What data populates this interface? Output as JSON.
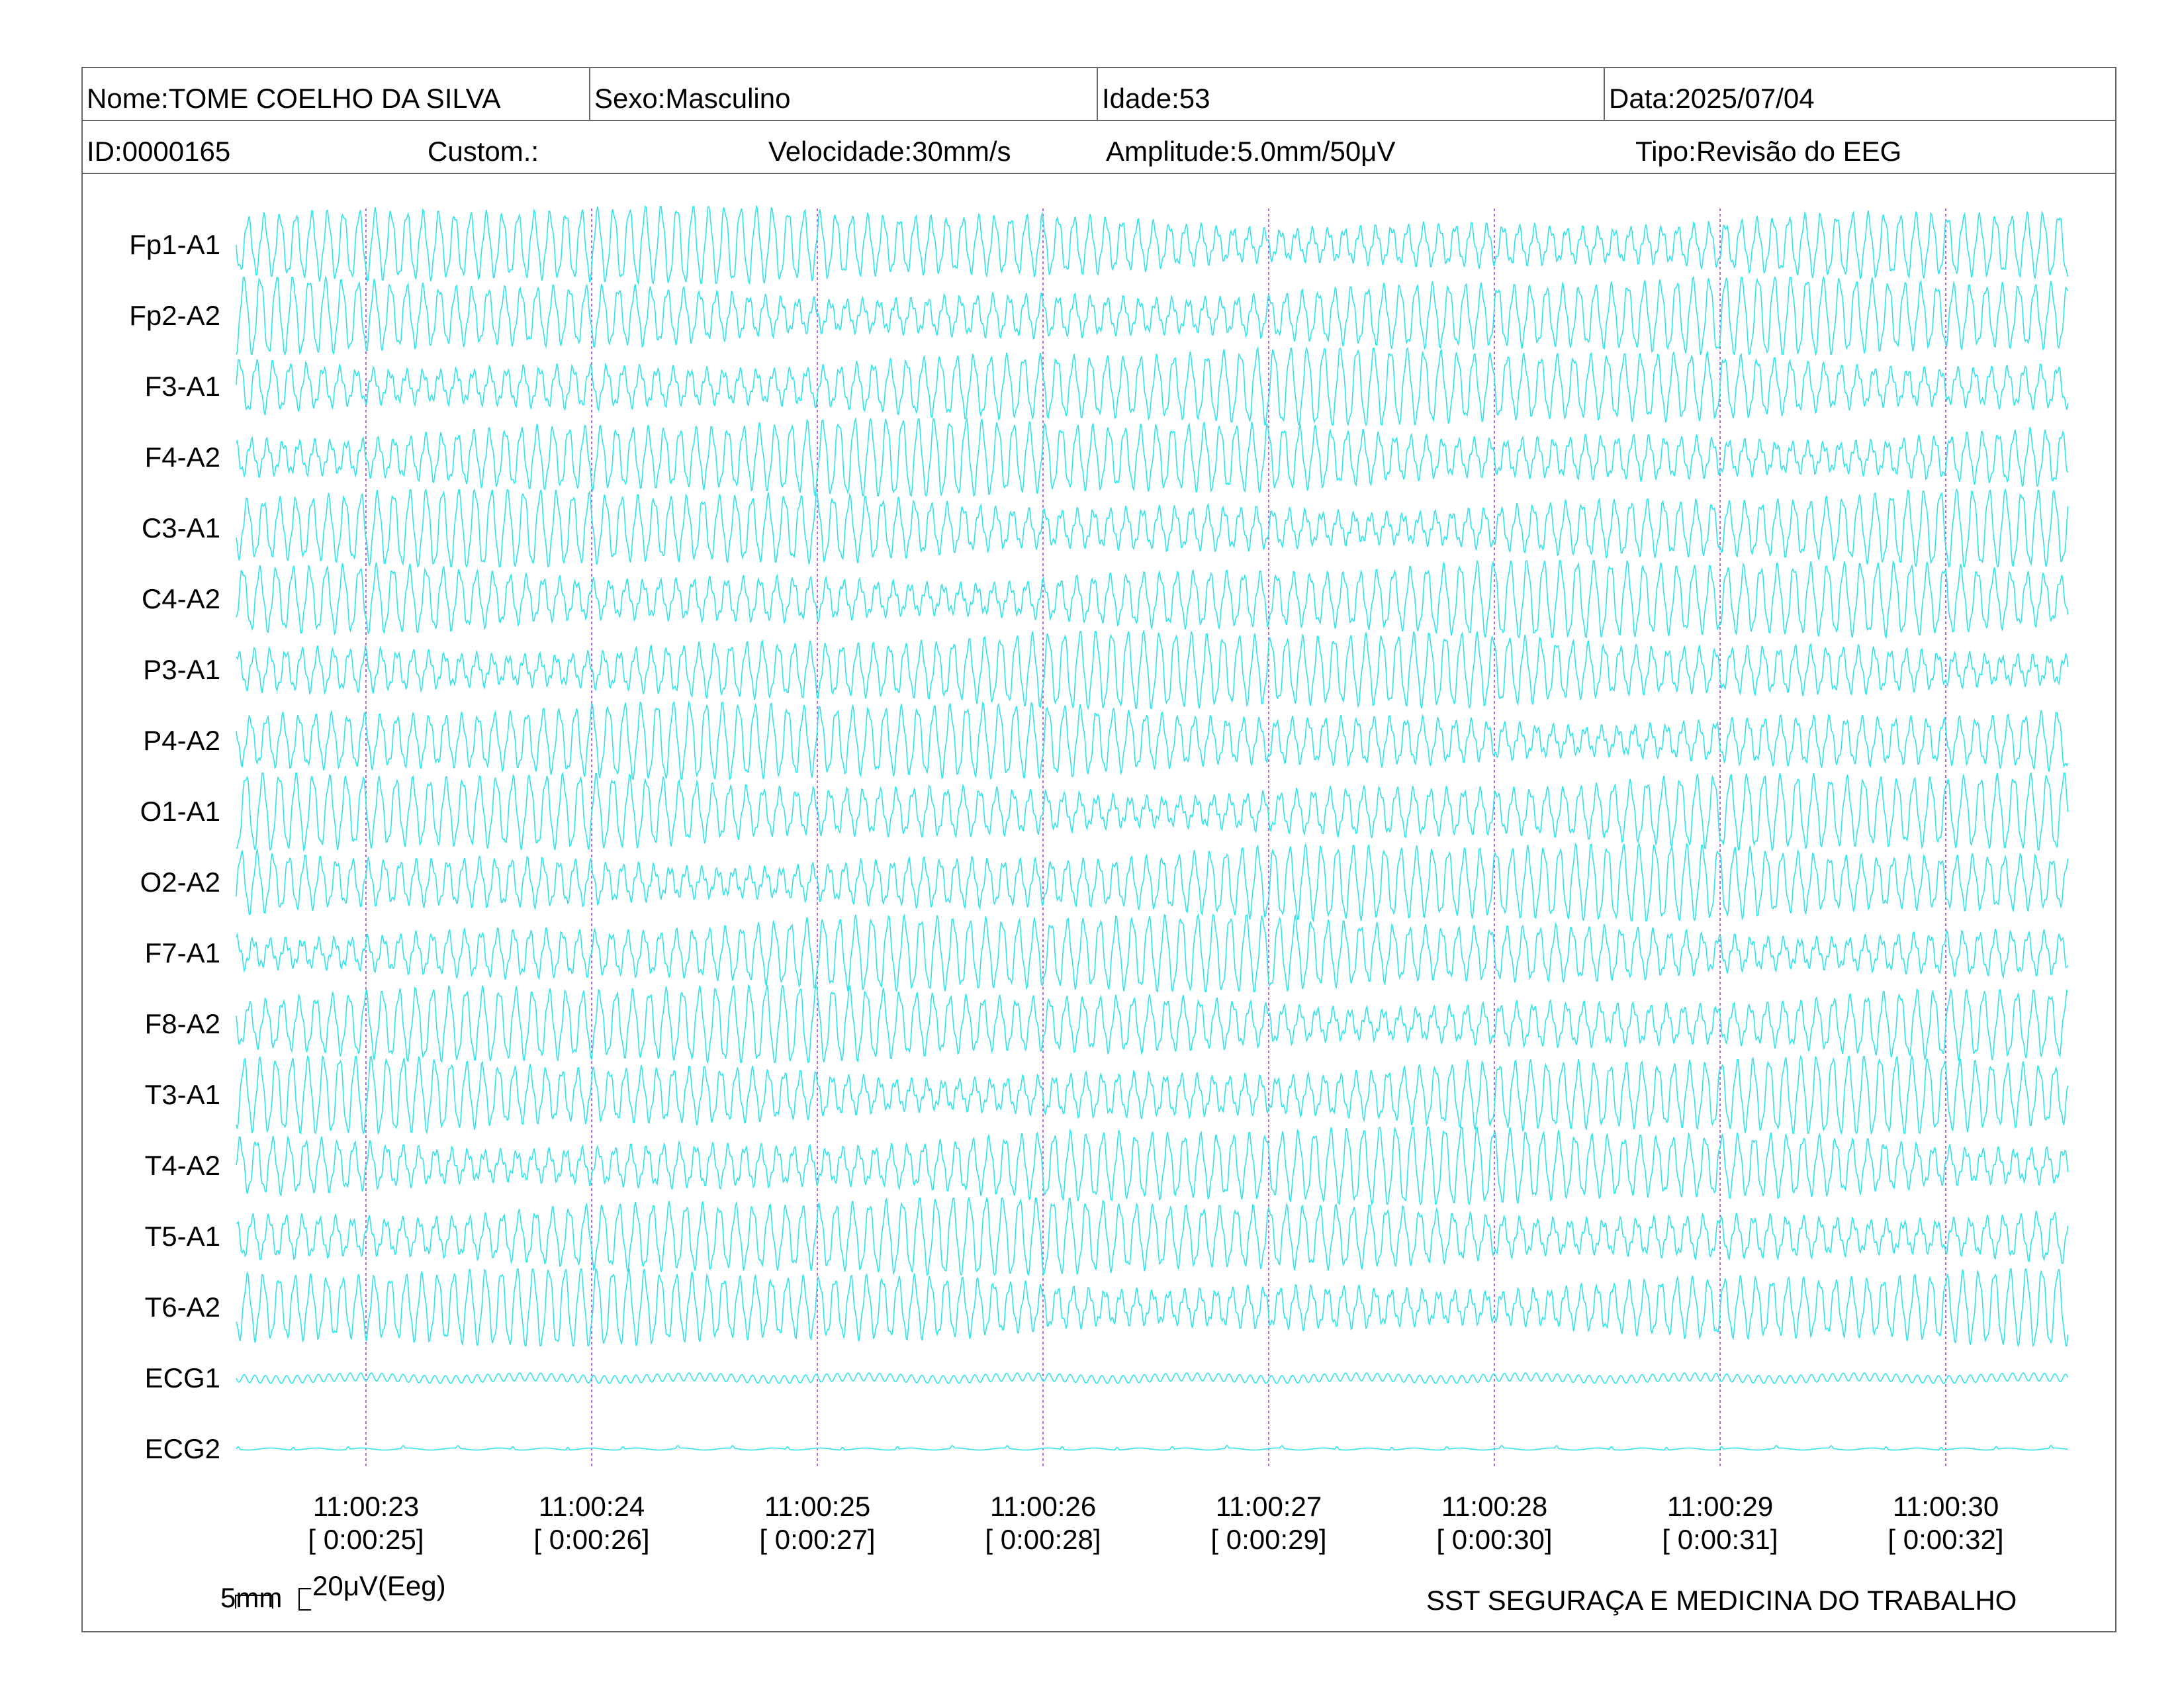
{
  "header": {
    "nome": "Nome:TOME COELHO DA SILVA",
    "sexo": "Sexo:Masculino",
    "idade": "Idade:53",
    "data": "Data:2025/07/04",
    "id": "ID:0000165",
    "custom": "Custom.:",
    "velocidade": "Velocidade:30mm/s",
    "amplitude": "Amplitude:5.0mm/50μV",
    "tipo": "Tipo:Revisão do EEG"
  },
  "chart_data": {
    "type": "line",
    "channels": [
      "Fp1-A1",
      "Fp2-A2",
      "F3-A1",
      "F4-A2",
      "C3-A1",
      "C4-A2",
      "P3-A1",
      "P4-A2",
      "O1-A1",
      "O2-A2",
      "F7-A1",
      "F8-A2",
      "T3-A1",
      "T4-A2",
      "T5-A1",
      "T6-A2",
      "ECG1",
      "ECG2"
    ],
    "time_markers": [
      {
        "clock": "11:00:23",
        "elapsed": "[ 0:00:25]"
      },
      {
        "clock": "11:00:24",
        "elapsed": "[ 0:00:26]"
      },
      {
        "clock": "11:00:25",
        "elapsed": "[ 0:00:27]"
      },
      {
        "clock": "11:00:26",
        "elapsed": "[ 0:00:28]"
      },
      {
        "clock": "11:00:27",
        "elapsed": "[ 0:00:29]"
      },
      {
        "clock": "11:00:28",
        "elapsed": "[ 0:00:30]"
      },
      {
        "clock": "11:00:29",
        "elapsed": "[ 0:00:31]"
      },
      {
        "clock": "11:00:30",
        "elapsed": "[ 0:00:32]"
      }
    ],
    "speed_mm_per_s": 30,
    "amplitude_mm_per_50uV": 5.0,
    "trace_color": "#33e3ea",
    "marker_color": "#b36bdc",
    "scale_bar": {
      "time": "5mm",
      "amplitude": "20μV(Eeg)"
    }
  },
  "footer": {
    "organization": "SST SEGURAÇA E MEDICINA DO TRABALHO"
  }
}
